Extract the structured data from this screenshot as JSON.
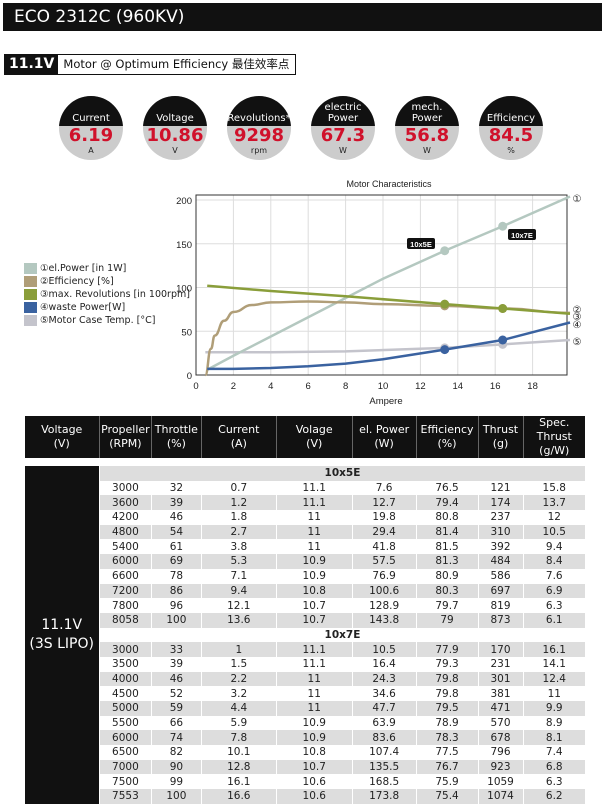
{
  "header": {
    "title": "ECO 2312C (960KV)"
  },
  "subtitle": {
    "voltage": "11.1V",
    "text": "Motor @ Optimum Efficiency  最佳效率点"
  },
  "gauges": [
    {
      "label": "Current",
      "value": "6.19",
      "unit": "A"
    },
    {
      "label": "Voltage",
      "value": "10.86",
      "unit": "V"
    },
    {
      "label": "Revolutions*",
      "value": "9298",
      "unit": "rpm"
    },
    {
      "label": "electric Power",
      "value": "67.3",
      "unit": "W"
    },
    {
      "label": "mech. Power",
      "value": "56.8",
      "unit": "W"
    },
    {
      "label": "Efficiency",
      "value": "84.5",
      "unit": "%"
    }
  ],
  "legend": [
    {
      "label": "①el.Power [in 1W]",
      "color": "#b4c8c0"
    },
    {
      "label": "②Efficiency [%]",
      "color": "#b09e78"
    },
    {
      "label": "③max. Revolutions [in 100rpm]",
      "color": "#8a9e3a"
    },
    {
      "label": "④waste Power[W]",
      "color": "#3a62a0"
    },
    {
      "label": "⑤Motor Case Temp. [°C]",
      "color": "#c4c4cc"
    }
  ],
  "chart_data": {
    "type": "line",
    "title": "Motor Characteristics",
    "xlabel": "Ampere",
    "ylabel": "",
    "xlim": [
      0,
      20
    ],
    "ylim": [
      0,
      200
    ],
    "xticks": [
      "0",
      "2",
      "4",
      "6",
      "8",
      "10",
      "12",
      "14",
      "16",
      "18"
    ],
    "yticks": [
      "0",
      "50",
      "100",
      "150",
      "200"
    ],
    "grid": true,
    "markers": [
      {
        "label": "10x5E",
        "x": 13.3
      },
      {
        "label": "10x7E",
        "x": 16.4
      }
    ],
    "series": [
      {
        "name": "①el.Power [in 1W]",
        "end_label": "①",
        "color": "#b4c8c0",
        "x": [
          0.6,
          2,
          4,
          6,
          8,
          10,
          13.3,
          16.4,
          20
        ],
        "values": [
          6,
          22,
          44,
          66,
          88,
          110,
          142,
          170,
          204
        ]
      },
      {
        "name": "②Efficiency [%]",
        "end_label": "②",
        "color": "#b09e78",
        "x": [
          0.5,
          0.8,
          1,
          1.5,
          2,
          3,
          4,
          6,
          8,
          10,
          13.3,
          16.4,
          20
        ],
        "values": [
          0,
          30,
          45,
          62,
          72,
          80,
          83,
          84,
          83,
          81,
          79,
          76,
          71
        ]
      },
      {
        "name": "③max. Revolutions [in 100rpm]",
        "end_label": "③",
        "color": "#8a9e3a",
        "x": [
          0.6,
          4,
          8,
          13.3,
          16.4,
          20
        ],
        "values": [
          102,
          96,
          90,
          81,
          76,
          70
        ]
      },
      {
        "name": "④waste Power[W]",
        "end_label": "④",
        "color": "#3a62a0",
        "x": [
          0.6,
          2,
          4,
          6,
          8,
          10,
          13.3,
          16.4,
          20
        ],
        "values": [
          7,
          7,
          8,
          10,
          13,
          18,
          29,
          40,
          60
        ]
      },
      {
        "name": "⑤Motor Case Temp. [°C]",
        "end_label": "⑤",
        "color": "#c4c4cc",
        "x": [
          0.5,
          4,
          8,
          13.3,
          16.4,
          20
        ],
        "values": [
          26,
          26,
          27,
          31,
          35,
          40
        ]
      }
    ]
  },
  "table": {
    "headers": [
      [
        "Voltage",
        "(V)"
      ],
      [
        "Propeller",
        "(RPM)"
      ],
      [
        "Throttle",
        "(%)"
      ],
      [
        "Current",
        "(A)"
      ],
      [
        "Volage",
        "(V)"
      ],
      [
        "el. Power",
        "(W)"
      ],
      [
        "Efficiency",
        "(%)"
      ],
      [
        "Thrust",
        "(g)"
      ],
      [
        "Spec. Thrust",
        "(g/W)"
      ]
    ],
    "voltage_cell": [
      "11.1V",
      "(3S LIPO)"
    ],
    "groups": [
      {
        "name": "10x5E",
        "rows": [
          [
            "3000",
            "32",
            "0.7",
            "11.1",
            "7.6",
            "76.5",
            "121",
            "15.8"
          ],
          [
            "3600",
            "39",
            "1.2",
            "11.1",
            "12.7",
            "79.4",
            "174",
            "13.7"
          ],
          [
            "4200",
            "46",
            "1.8",
            "11",
            "19.8",
            "80.8",
            "237",
            "12"
          ],
          [
            "4800",
            "54",
            "2.7",
            "11",
            "29.4",
            "81.4",
            "310",
            "10.5"
          ],
          [
            "5400",
            "61",
            "3.8",
            "11",
            "41.8",
            "81.5",
            "392",
            "9.4"
          ],
          [
            "6000",
            "69",
            "5.3",
            "10.9",
            "57.5",
            "81.3",
            "484",
            "8.4"
          ],
          [
            "6600",
            "78",
            "7.1",
            "10.9",
            "76.9",
            "80.9",
            "586",
            "7.6"
          ],
          [
            "7200",
            "86",
            "9.4",
            "10.8",
            "100.6",
            "80.3",
            "697",
            "6.9"
          ],
          [
            "7800",
            "96",
            "12.1",
            "10.7",
            "128.9",
            "79.7",
            "819",
            "6.3"
          ],
          [
            "8058",
            "100",
            "13.6",
            "10.7",
            "143.8",
            "79",
            "873",
            "6.1"
          ]
        ]
      },
      {
        "name": "10x7E",
        "rows": [
          [
            "3000",
            "33",
            "1",
            "11.1",
            "10.5",
            "77.9",
            "170",
            "16.1"
          ],
          [
            "3500",
            "39",
            "1.5",
            "11.1",
            "16.4",
            "79.3",
            "231",
            "14.1"
          ],
          [
            "4000",
            "46",
            "2.2",
            "11",
            "24.3",
            "79.8",
            "301",
            "12.4"
          ],
          [
            "4500",
            "52",
            "3.2",
            "11",
            "34.6",
            "79.8",
            "381",
            "11"
          ],
          [
            "5000",
            "59",
            "4.4",
            "11",
            "47.7",
            "79.5",
            "471",
            "9.9"
          ],
          [
            "5500",
            "66",
            "5.9",
            "10.9",
            "63.9",
            "78.9",
            "570",
            "8.9"
          ],
          [
            "6000",
            "74",
            "7.8",
            "10.9",
            "83.6",
            "78.3",
            "678",
            "8.1"
          ],
          [
            "6500",
            "82",
            "10.1",
            "10.8",
            "107.4",
            "77.5",
            "796",
            "7.4"
          ],
          [
            "7000",
            "90",
            "12.8",
            "10.7",
            "135.5",
            "76.7",
            "923",
            "6.8"
          ],
          [
            "7500",
            "99",
            "16.1",
            "10.6",
            "168.5",
            "75.9",
            "1059",
            "6.3"
          ],
          [
            "7553",
            "100",
            "16.6",
            "10.6",
            "173.8",
            "75.4",
            "1074",
            "6.2"
          ]
        ]
      }
    ]
  }
}
